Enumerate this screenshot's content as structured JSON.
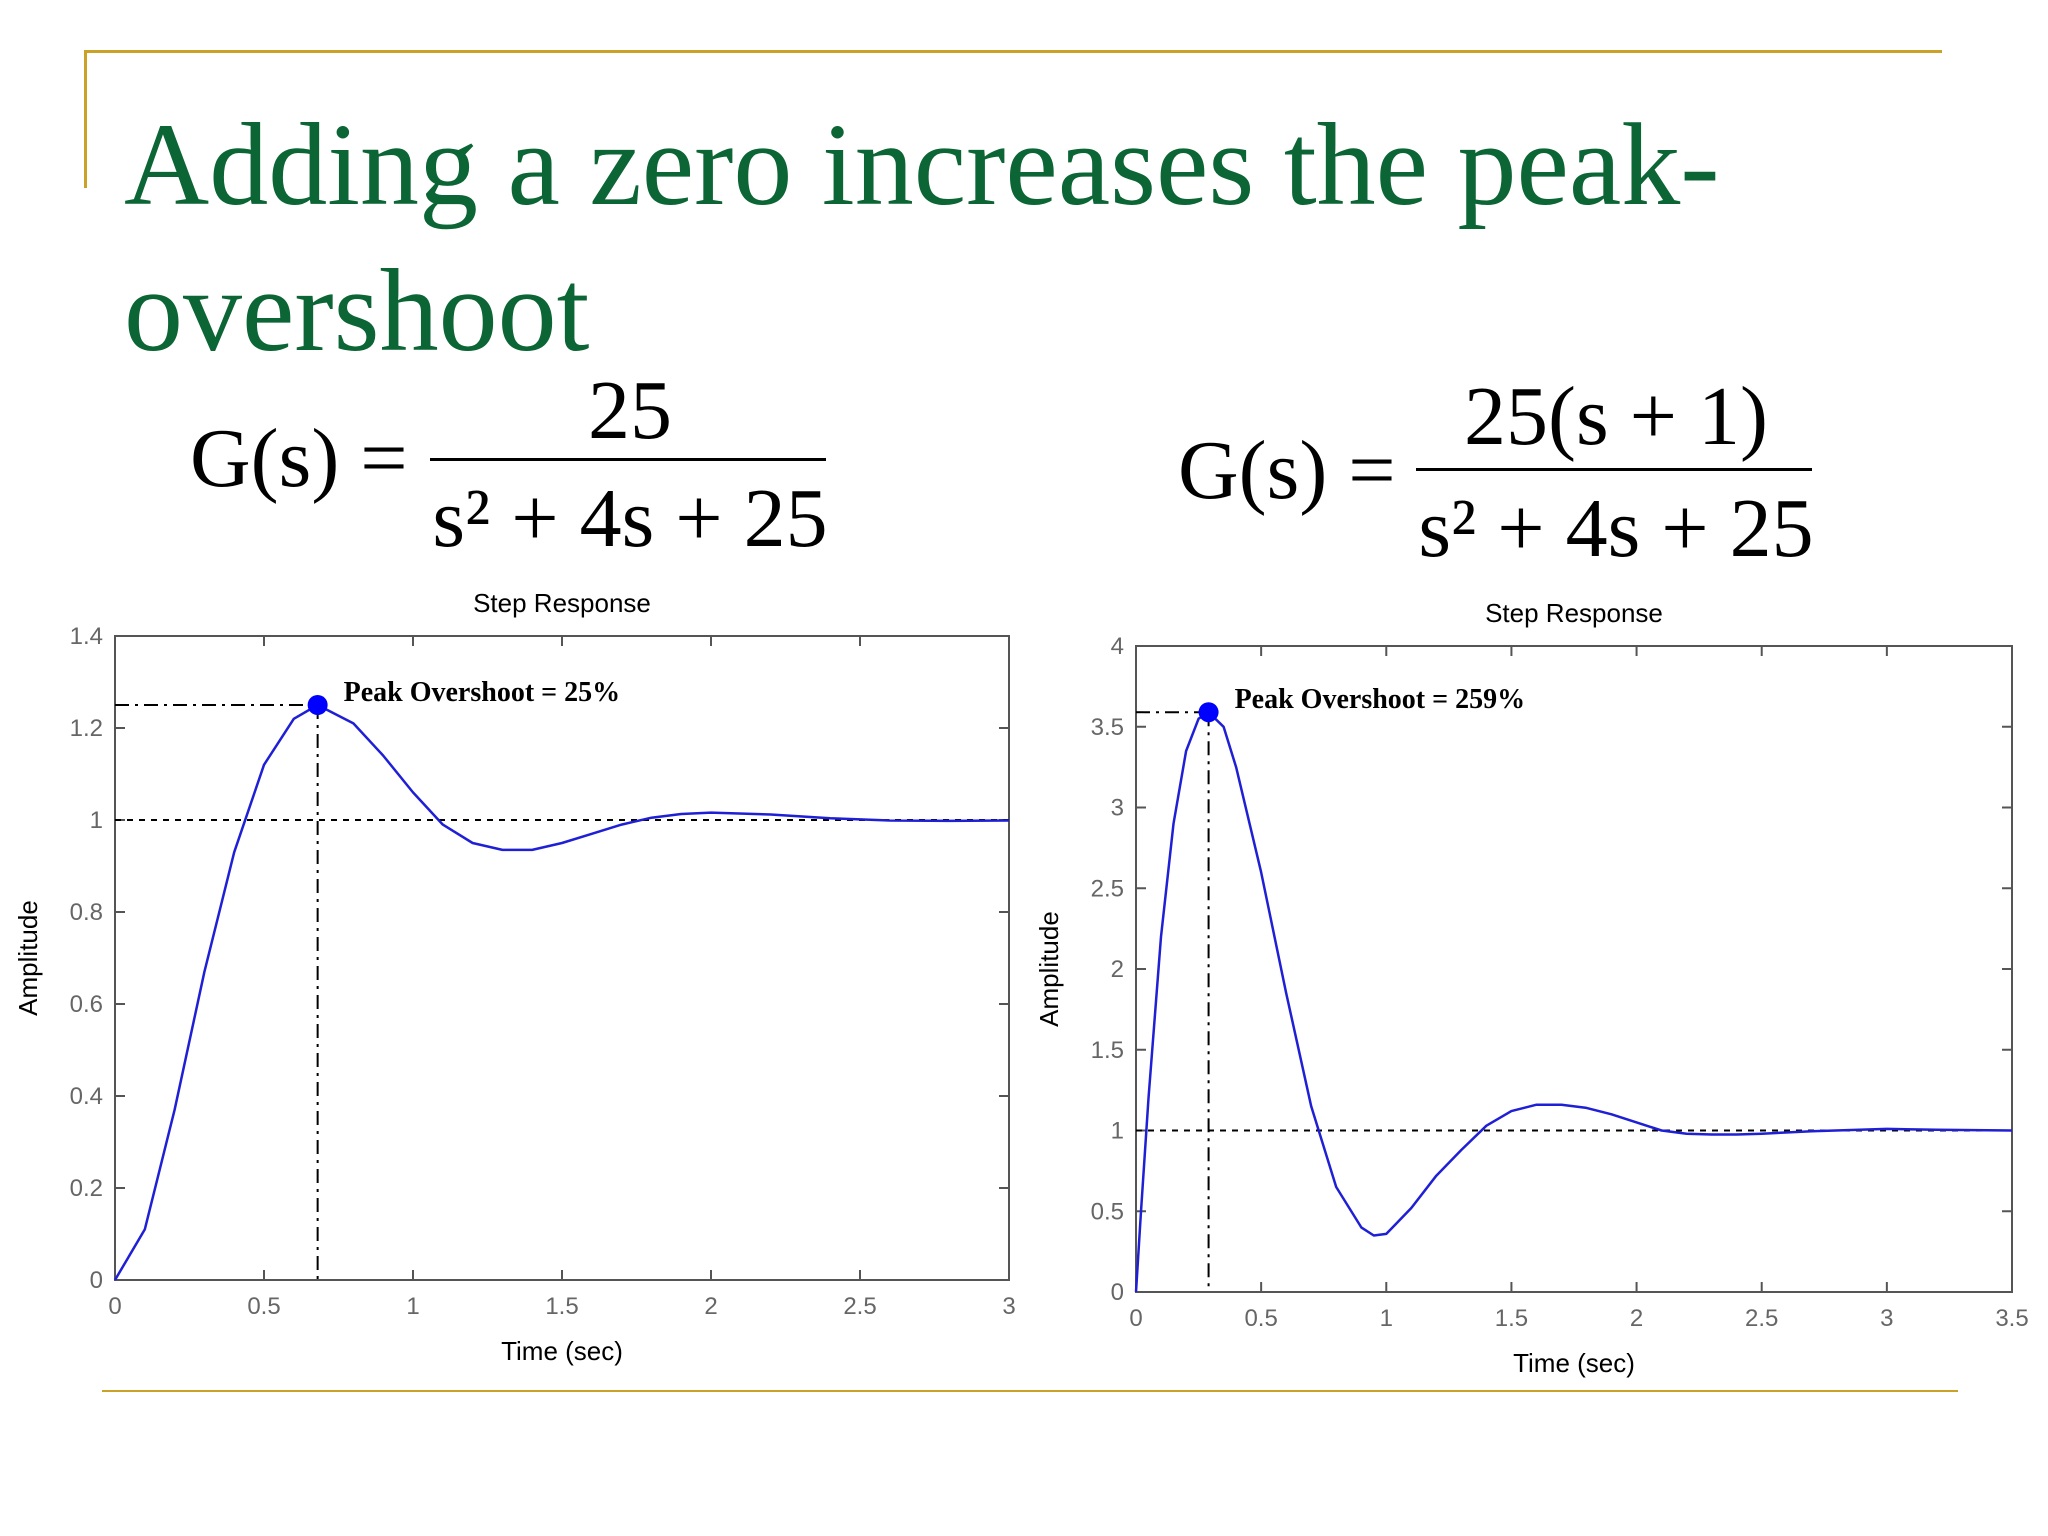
{
  "slide": {
    "title": "Adding a zero increases the peak-overshoot"
  },
  "formulas": [
    {
      "lhs": "G(s) =",
      "numerator": "25",
      "denominator": "s² + 4s + 25"
    },
    {
      "lhs": "G(s) =",
      "numerator": "25(s + 1)",
      "denominator": "s² + 4s + 25"
    }
  ],
  "colors": {
    "title": "#0b6534",
    "rule": "#c9a227",
    "curve": "#1f1fd6",
    "marker": "#0000ff"
  },
  "chart_data": [
    {
      "type": "line",
      "title": "Step Response",
      "xlabel": "Time (sec)",
      "ylabel": "Amplitude",
      "xlim": [
        0,
        3
      ],
      "ylim": [
        0,
        1.4
      ],
      "xticks": [
        0,
        0.5,
        1,
        1.5,
        2,
        2.5,
        3
      ],
      "xtick_labels": [
        "0",
        "0.5",
        "1",
        "1.5",
        "2",
        "2.5",
        "3"
      ],
      "yticks": [
        0,
        0.2,
        0.4,
        0.6,
        0.8,
        1,
        1.2,
        1.4
      ],
      "ytick_labels": [
        "0",
        "0.2",
        "0.4",
        "0.6",
        "0.8",
        "1",
        "1.2",
        "1.4"
      ],
      "grid": false,
      "series": [
        {
          "x": [
            0,
            0.1,
            0.2,
            0.3,
            0.4,
            0.5,
            0.6,
            0.68,
            0.8,
            0.9,
            1.0,
            1.1,
            1.2,
            1.3,
            1.4,
            1.5,
            1.6,
            1.7,
            1.8,
            1.9,
            2.0,
            2.2,
            2.4,
            2.6,
            2.8,
            3.0
          ],
          "values": [
            0,
            0.11,
            0.37,
            0.67,
            0.93,
            1.12,
            1.22,
            1.25,
            1.21,
            1.14,
            1.06,
            0.99,
            0.95,
            0.935,
            0.935,
            0.95,
            0.97,
            0.99,
            1.005,
            1.013,
            1.016,
            1.012,
            1.004,
            0.999,
            0.998,
            0.999
          ]
        }
      ],
      "reference_y": 1,
      "peak": {
        "x": 0.68,
        "y": 1.25,
        "label": "Peak Overshoot = 25%"
      }
    },
    {
      "type": "line",
      "title": "Step Response",
      "xlabel": "Time (sec)",
      "ylabel": "Amplitude",
      "xlim": [
        0,
        3.5
      ],
      "ylim": [
        0,
        4
      ],
      "xticks": [
        0,
        0.5,
        1,
        1.5,
        2,
        2.5,
        3,
        3.5
      ],
      "xtick_labels": [
        "0",
        "0.5",
        "1",
        "1.5",
        "2",
        "2.5",
        "3",
        "3.5"
      ],
      "yticks": [
        0,
        0.5,
        1,
        1.5,
        2,
        2.5,
        3,
        3.5,
        4
      ],
      "ytick_labels": [
        "0",
        "0.5",
        "1",
        "1.5",
        "2",
        "2.5",
        "3",
        "3.5",
        "4"
      ],
      "grid": false,
      "series": [
        {
          "x": [
            0,
            0.02,
            0.05,
            0.1,
            0.15,
            0.2,
            0.25,
            0.29,
            0.35,
            0.4,
            0.5,
            0.6,
            0.7,
            0.8,
            0.9,
            0.95,
            1.0,
            1.1,
            1.2,
            1.3,
            1.4,
            1.5,
            1.6,
            1.7,
            1.8,
            1.9,
            2.0,
            2.1,
            2.2,
            2.3,
            2.4,
            2.5,
            2.7,
            3.0,
            3.2,
            3.5
          ],
          "values": [
            0,
            0.5,
            1.2,
            2.2,
            2.9,
            3.35,
            3.55,
            3.59,
            3.5,
            3.25,
            2.6,
            1.85,
            1.15,
            0.65,
            0.4,
            0.35,
            0.36,
            0.52,
            0.72,
            0.88,
            1.03,
            1.12,
            1.16,
            1.16,
            1.14,
            1.1,
            1.05,
            1.0,
            0.98,
            0.975,
            0.975,
            0.98,
            0.995,
            1.01,
            1.005,
            1.0
          ]
        }
      ],
      "reference_y": 1,
      "peak": {
        "x": 0.29,
        "y": 3.59,
        "label": "Peak Overshoot = 259%"
      }
    }
  ]
}
